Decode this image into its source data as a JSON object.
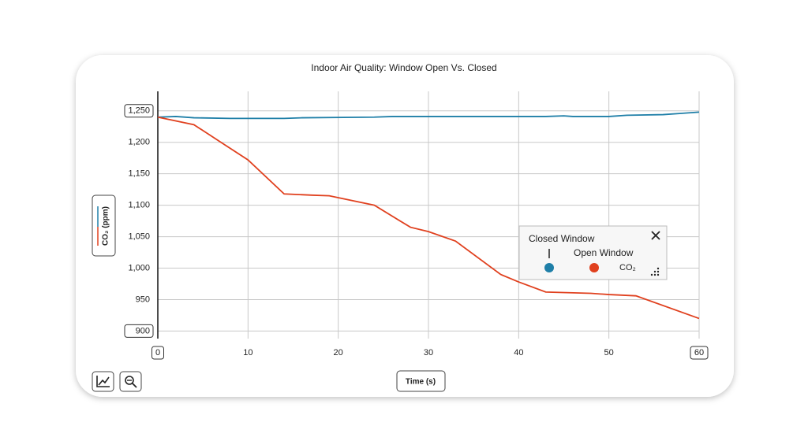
{
  "chart_data": {
    "type": "line",
    "title": "Indoor Air Quality: Window Open Vs. Closed",
    "y_label": "CO₂ (ppm)",
    "x_label": "Time (s)",
    "legend_measure": "CO₂",
    "xlim": [
      0,
      60
    ],
    "xticks": [
      0,
      10,
      20,
      30,
      40,
      50,
      60
    ],
    "ylim": [
      888,
      1281
    ],
    "yticks": [
      900,
      950,
      {
        "value": 1000,
        "label": "1,000"
      },
      {
        "value": 1050,
        "label": "1,050"
      },
      {
        "value": 1100,
        "label": "1,100"
      },
      {
        "value": 1150,
        "label": "1,150"
      },
      {
        "value": 1200,
        "label": "1,200"
      },
      {
        "value": 1250,
        "label": "1,250"
      }
    ],
    "grid": true,
    "series": [
      {
        "name": "Closed Window",
        "color": "#1f7fa8",
        "x": [
          0,
          2,
          4,
          8,
          14,
          16,
          24,
          26,
          40,
          43,
          45,
          46,
          50,
          52,
          56,
          58,
          60
        ],
        "values": [
          1240,
          1241,
          1239,
          1238,
          1238,
          1239,
          1240,
          1241,
          1241,
          1241,
          1242,
          1241,
          1241,
          1243,
          1244,
          1246,
          1248
        ]
      },
      {
        "name": "Open Window",
        "color": "#e0401e",
        "x": [
          0,
          4,
          7,
          10,
          14,
          17,
          19,
          24,
          28,
          30,
          33,
          38,
          40,
          43,
          48,
          50,
          53,
          60
        ],
        "values": [
          1240,
          1228,
          1200,
          1172,
          1118,
          1116,
          1115,
          1100,
          1065,
          1058,
          1043,
          990,
          978,
          962,
          960,
          958,
          956,
          920
        ]
      }
    ]
  }
}
